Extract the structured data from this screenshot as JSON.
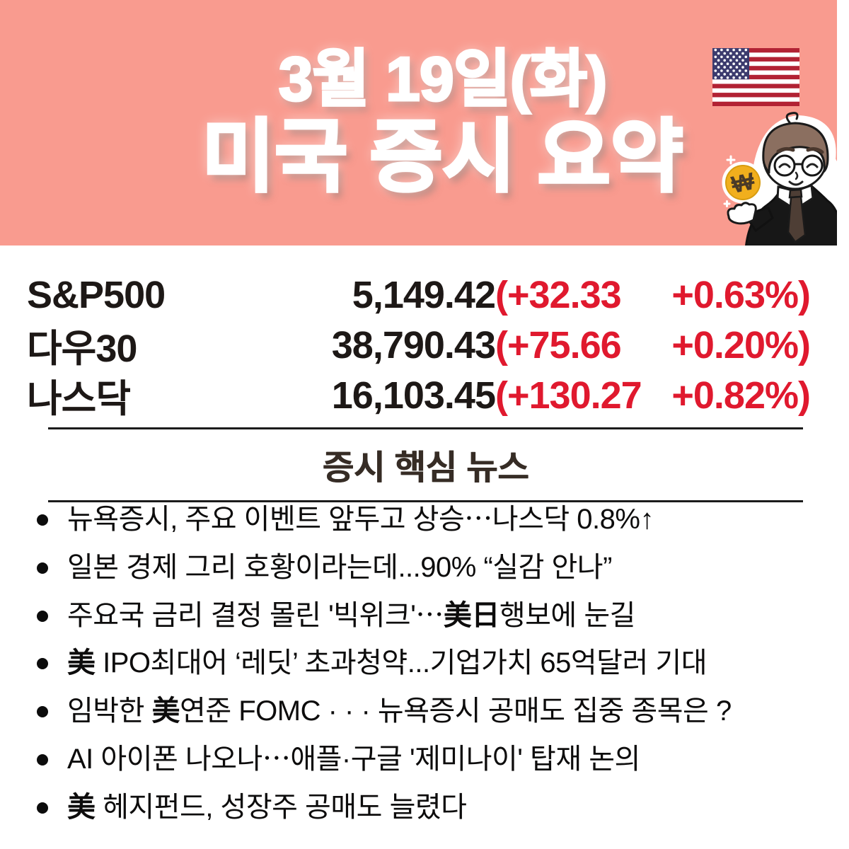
{
  "header": {
    "bg_color": "#F99B8F",
    "date_line": "3월 19일(화)",
    "title_line": "미국 증시 요약",
    "flag_icon": "us-flag-icon",
    "mascot_icon": "analyst-mascot",
    "coin_symbol": "₩"
  },
  "indices": {
    "value_color": "#1D1816",
    "change_color": "#E0192E",
    "rows": [
      {
        "name": "S&P500",
        "value": "5,149.42",
        "change": "(+32.33",
        "percent": "+0.63%)"
      },
      {
        "name": "다우30",
        "value": "38,790.43",
        "change": "(+75.66",
        "percent": "+0.20%)"
      },
      {
        "name": "나스닥",
        "value": "16,103.45",
        "change": "(+130.27",
        "percent": "+0.82%)"
      }
    ]
  },
  "news": {
    "section_title": "증시 핵심 뉴스",
    "items": [
      {
        "segments": [
          {
            "t": "뉴욕증시, 주요 이벤트 앞두고 상승⋯나스닥 0.8%↑",
            "b": false
          }
        ]
      },
      {
        "segments": [
          {
            "t": "일본 경제 그리 호황이라는데...90% “실감 안나”",
            "b": false
          }
        ]
      },
      {
        "segments": [
          {
            "t": "주요국 금리 결정 몰린 '빅위크'⋯",
            "b": false
          },
          {
            "t": "美日",
            "b": true
          },
          {
            "t": "행보에 눈길",
            "b": false
          }
        ]
      },
      {
        "segments": [
          {
            "t": "美",
            "b": true
          },
          {
            "t": " IPO최대어 ‘레딧’ 초과청약...기업가치 65억달러 기대",
            "b": false
          }
        ]
      },
      {
        "segments": [
          {
            "t": "임박한 ",
            "b": false
          },
          {
            "t": "美",
            "b": true
          },
          {
            "t": "연준 FOMC · · · 뉴욕증시 공매도 집중 종목은 ?",
            "b": false
          }
        ]
      },
      {
        "segments": [
          {
            "t": "AI 아이폰 나오나⋯애플·구글 '제미나이' 탑재 논의",
            "b": false
          }
        ]
      },
      {
        "segments": [
          {
            "t": "美",
            "b": true
          },
          {
            "t": " 헤지펀드, 성장주 공매도 늘렸다",
            "b": false
          }
        ]
      }
    ]
  }
}
